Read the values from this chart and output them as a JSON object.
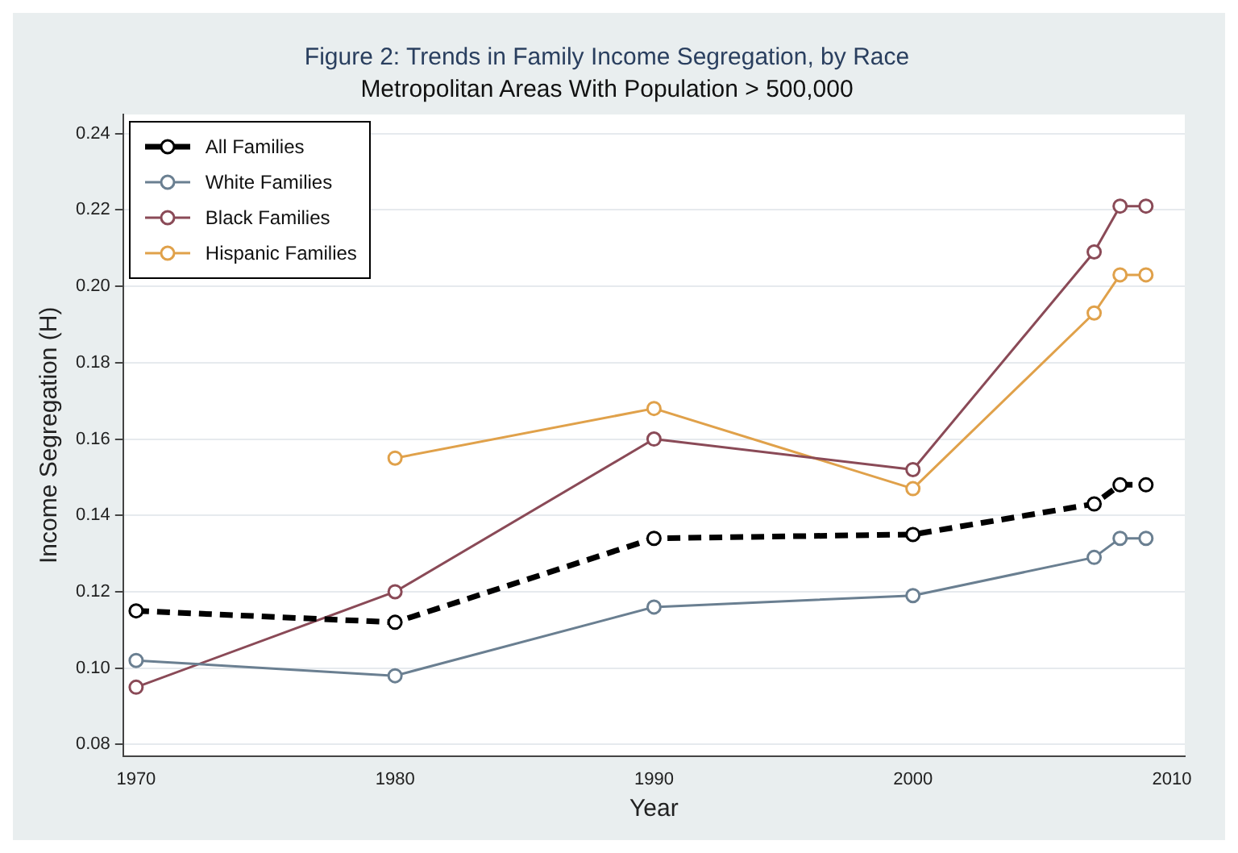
{
  "chart_data": {
    "type": "line",
    "title": "Figure 2: Trends in Family Income Segregation, by Race",
    "subtitle": "Metropolitan Areas With Population > 500,000",
    "xlabel": "Year",
    "ylabel": "Income Segregation (H)",
    "x": [
      1970,
      1980,
      1990,
      2000,
      2007,
      2008,
      2009
    ],
    "series": [
      {
        "name": "All Families",
        "color": "#000000",
        "line_style": "dashed",
        "values": [
          0.115,
          0.112,
          0.134,
          0.135,
          0.143,
          0.148,
          0.148
        ]
      },
      {
        "name": "White Families",
        "color": "#6a7f91",
        "line_style": "solid",
        "values": [
          0.102,
          0.098,
          0.116,
          0.119,
          0.129,
          0.134,
          0.134
        ]
      },
      {
        "name": "Black Families",
        "color": "#8a4a57",
        "line_style": "solid",
        "values": [
          0.095,
          0.12,
          0.16,
          0.152,
          0.209,
          0.221,
          0.221
        ]
      },
      {
        "name": "Hispanic Families",
        "color": "#e0a14a",
        "line_style": "solid",
        "values": [
          null,
          0.155,
          0.168,
          0.147,
          0.193,
          0.203,
          0.203
        ]
      }
    ],
    "xlim": [
      1969.5,
      2010.5
    ],
    "xticks": [
      1970,
      1980,
      1990,
      2000,
      2010
    ],
    "ylim": [
      0.077,
      0.245
    ],
    "yticks": [
      0.08,
      {
        "value": 0.1,
        "label": "0.10"
      },
      0.12,
      0.14,
      0.16,
      0.18,
      {
        "value": 0.2,
        "label": "0.20"
      },
      0.22,
      0.24
    ],
    "grid": "y",
    "legend": "top left",
    "marker": "circle"
  }
}
